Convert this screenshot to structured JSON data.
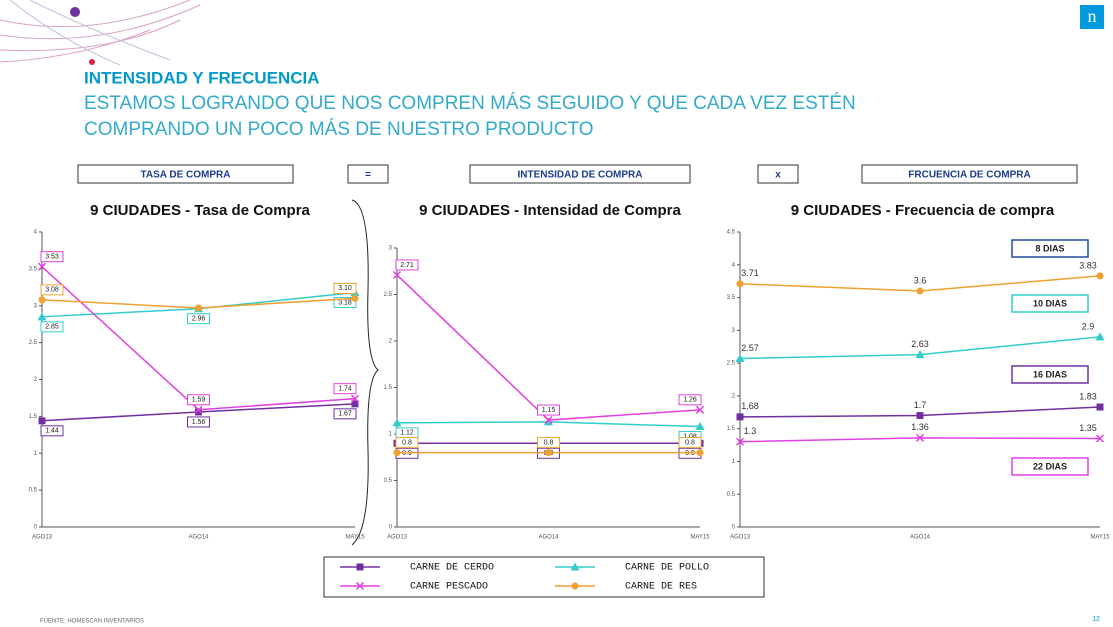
{
  "header": {
    "title": "INTENSIDAD Y FRECUENCIA",
    "subtitle_lines": [
      "ESTAMOS LOGRANDO QUE NOS COMPREN MÁS SEGUIDO Y QUE CADA VEZ ESTÉN",
      "COMPRANDO UN POCO MÁS DE NUESTRO PRODUCTO"
    ],
    "logo": "n"
  },
  "formula": [
    "TASA DE COMPRA",
    "=",
    "INTENSIDAD DE COMPRA",
    "x",
    "FRCUENCIA DE COMPRA"
  ],
  "footer": {
    "source": "FUENTE: HOMESCAN INVENTARIOS",
    "page": "12"
  },
  "chart_data": [
    {
      "type": "line",
      "title": "9 CIUDADES - Tasa de Compra",
      "categories": [
        "AGO13",
        "AGO14",
        "MAY15"
      ],
      "ylim": [
        0,
        4
      ],
      "yticks": [
        0,
        0.5,
        1,
        1.5,
        2,
        2.5,
        3,
        3.5,
        4
      ],
      "series": [
        {
          "name": "CARNE DE CERDO",
          "color": "#7030a0",
          "marker": "square",
          "values": [
            1.44,
            1.56,
            1.67
          ],
          "value_labels": [
            "1.44",
            "1.56",
            "1.67"
          ]
        },
        {
          "name": "CARNE DE POLLO",
          "color": "#33cccc",
          "marker": "triangle",
          "values": [
            2.85,
            2.96,
            3.18
          ],
          "value_labels": [
            "2.85",
            "2.96",
            "3.18"
          ]
        },
        {
          "name": "CARNE PESCADO",
          "color": "#e040e0",
          "marker": "x",
          "values": [
            3.53,
            1.59,
            1.74
          ],
          "value_labels": [
            "3.53",
            "1.59",
            "1.74"
          ]
        },
        {
          "name": "CARNE DE RES",
          "color": "#f0a030",
          "marker": "circle",
          "values": [
            3.08,
            2.97,
            3.1
          ],
          "value_labels": [
            "3.08",
            null,
            "3.10"
          ]
        }
      ]
    },
    {
      "type": "line",
      "title": "9 CIUDADES - Intensidad de Compra",
      "categories": [
        "AGO13",
        "AGO14",
        "MAY15"
      ],
      "ylim": [
        0,
        3
      ],
      "yticks": [
        0,
        0.5,
        1,
        1.5,
        2,
        2.5,
        3
      ],
      "series": [
        {
          "name": "CARNE DE CERDO",
          "color": "#7030a0",
          "marker": "square",
          "values": [
            0.9,
            0.9,
            0.9
          ]
        },
        {
          "name": "CARNE DE POLLO",
          "color": "#33cccc",
          "marker": "triangle",
          "values": [
            1.12,
            1.13,
            1.08
          ],
          "value_labels": [
            "1.12",
            null,
            "1.08"
          ]
        },
        {
          "name": "CARNE PESCADO",
          "color": "#e040e0",
          "marker": "x",
          "values": [
            2.71,
            1.15,
            1.26
          ]
        },
        {
          "name": "CARNE DE RES",
          "color": "#f0a030",
          "marker": "circle",
          "values": [
            0.8,
            0.8,
            0.8
          ]
        }
      ]
    },
    {
      "type": "line",
      "title": "9 CIUDADES - Frecuencia de compra",
      "categories": [
        "AGO13",
        "AGO14",
        "MAY15"
      ],
      "ylim": [
        0,
        4.5
      ],
      "yticks": [
        0,
        0.5,
        1,
        1.5,
        2,
        2.5,
        3,
        3.5,
        4,
        4.5
      ],
      "annotations": [
        "8 DIAS",
        "10 DIAS",
        "16 DIAS",
        "22 DIAS"
      ],
      "series": [
        {
          "name": "CARNE DE CERDO",
          "color": "#7030a0",
          "marker": "square",
          "values": [
            1.68,
            1.7,
            1.83
          ]
        },
        {
          "name": "CARNE DE POLLO",
          "color": "#33cccc",
          "marker": "triangle",
          "values": [
            2.57,
            2.63,
            2.9
          ]
        },
        {
          "name": "CARNE PESCADO",
          "color": "#e040e0",
          "marker": "x",
          "values": [
            1.3,
            1.36,
            1.35
          ]
        },
        {
          "name": "CARNE DE RES",
          "color": "#f0a030",
          "marker": "circle",
          "values": [
            3.71,
            3.6,
            3.83
          ]
        }
      ]
    }
  ]
}
